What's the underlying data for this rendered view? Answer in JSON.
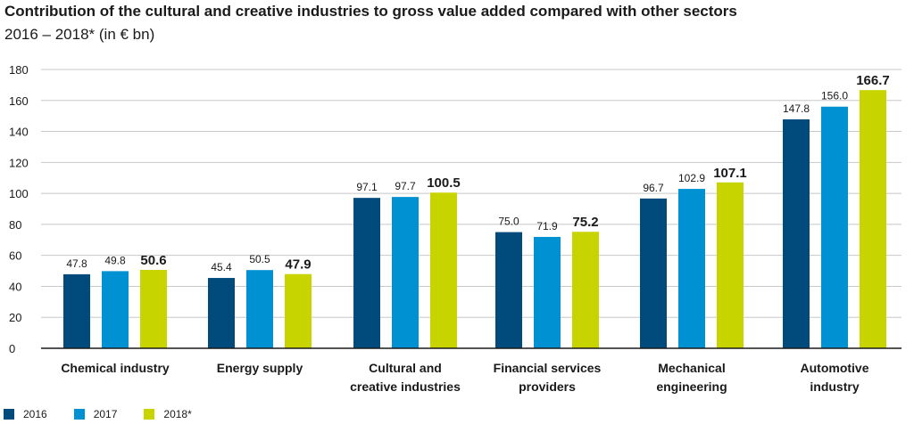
{
  "header": {
    "title": "Contribution of the cultural and creative industries to gross value added compared with other sectors",
    "subtitle": "2016 – 2018* (in € bn)"
  },
  "legend": [
    {
      "label": "2016",
      "color": "#004b7c"
    },
    {
      "label": "2017",
      "color": "#0091d3"
    },
    {
      "label": "2018*",
      "color": "#c8d400"
    }
  ],
  "chart_data": {
    "type": "bar",
    "title": "Contribution of the cultural and creative industries to gross value added compared with other sectors",
    "subtitle": "2016 – 2018* (in € bn)",
    "categories": [
      [
        "Chemical industry"
      ],
      [
        "Energy supply"
      ],
      [
        "Cultural and",
        "creative industries"
      ],
      [
        "Financial services",
        "providers"
      ],
      [
        "Mechanical",
        "engineering"
      ],
      [
        "Automotive",
        "industry"
      ]
    ],
    "series": [
      {
        "name": "2016",
        "color": "#004b7c",
        "values": [
          47.8,
          45.4,
          97.1,
          75.0,
          96.7,
          147.8
        ],
        "labels": [
          "47.8",
          "45.4",
          "97.1",
          "75.0",
          "96.7",
          "147.8"
        ]
      },
      {
        "name": "2017",
        "color": "#0091d3",
        "values": [
          49.8,
          50.5,
          97.7,
          71.9,
          102.9,
          156.0
        ],
        "labels": [
          "49.8",
          "50.5",
          "97.7",
          "71.9",
          "102.9",
          "156.0"
        ]
      },
      {
        "name": "2018*",
        "color": "#c8d400",
        "values": [
          50.6,
          47.9,
          100.5,
          75.2,
          107.1,
          166.7
        ],
        "labels": [
          "50.6",
          "47.9",
          "100.5",
          "75.2",
          "107.1",
          "166.7"
        ]
      }
    ],
    "ylim": [
      0,
      180
    ],
    "yticks": [
      "0",
      "20",
      "40",
      "60",
      "80",
      "100",
      "120",
      "140",
      "160",
      "180"
    ],
    "grid": true,
    "legend_position": "bottom-left",
    "xlabel": "",
    "ylabel": ""
  }
}
